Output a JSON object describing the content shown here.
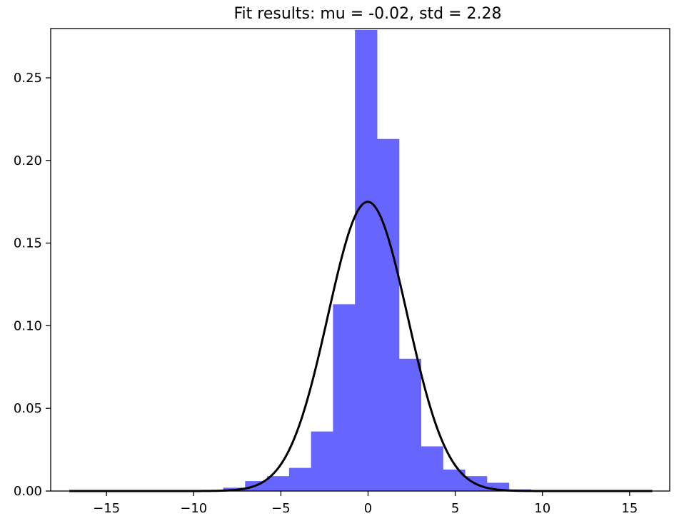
{
  "chart_data": {
    "type": "bar",
    "title": "Fit results: mu = -0.02,  std = 2.28",
    "xlabel": "",
    "ylabel": "",
    "xlim": [
      -18.2,
      17.3
    ],
    "ylim": [
      0,
      0.2798
    ],
    "grid": false,
    "legend": "none",
    "x_ticks": [
      -15,
      -10,
      -5,
      0,
      5,
      10,
      15
    ],
    "x_tick_labels": [
      "−15",
      "−10",
      "−5",
      "0",
      "5",
      "10",
      "15"
    ],
    "y_ticks": [
      0.0,
      0.05,
      0.1,
      0.15,
      0.2,
      0.25
    ],
    "y_tick_labels": [
      "0.00",
      "0.05",
      "0.10",
      "0.15",
      "0.20",
      "0.25"
    ],
    "histogram": {
      "color": "#6666ff",
      "bin_edges": [
        -17.13,
        -15.87,
        -14.61,
        -13.35,
        -12.09,
        -10.83,
        -9.57,
        -8.31,
        -7.05,
        -5.79,
        -4.53,
        -3.27,
        -2.01,
        -0.75,
        0.51,
        1.77,
        3.03,
        4.29,
        5.55,
        6.81,
        8.07,
        9.33
      ],
      "values": [
        0.0,
        0.0,
        0.0,
        0.0,
        0.0,
        0.0,
        0.0005,
        0.002,
        0.006,
        0.009,
        0.014,
        0.036,
        0.113,
        0.279,
        0.213,
        0.08,
        0.027,
        0.013,
        0.009,
        0.005,
        0.001
      ]
    },
    "fit_curve": {
      "type": "line",
      "color": "#000000",
      "mu": -0.02,
      "std": 2.28,
      "x_range": [
        -17.13,
        16.3
      ]
    }
  }
}
